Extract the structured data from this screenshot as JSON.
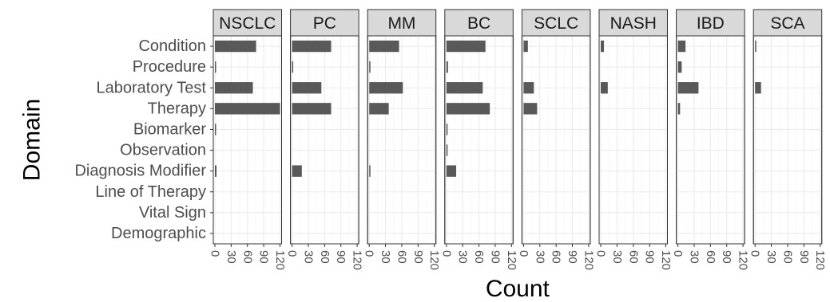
{
  "chart_data": {
    "type": "bar",
    "orientation": "horizontal",
    "faceted": true,
    "xlabel": "Count",
    "ylabel": "Domain",
    "xlim": [
      0,
      120
    ],
    "xticks": [
      "0",
      "30",
      "60",
      "90",
      "120"
    ],
    "categories": [
      "Condition",
      "Procedure",
      "Laboratory Test",
      "Therapy",
      "Biomarker",
      "Observation",
      "Diagnosis Modifier",
      "Line of Therapy",
      "Vital Sign",
      "Demographic"
    ],
    "panels": [
      {
        "name": "NSCLC",
        "values": [
          76,
          1,
          70,
          120,
          1,
          0,
          3,
          0,
          0,
          0
        ]
      },
      {
        "name": "PC",
        "values": [
          72,
          1,
          54,
          72,
          0,
          0,
          18,
          0,
          0,
          0
        ]
      },
      {
        "name": "MM",
        "values": [
          55,
          1,
          62,
          36,
          0,
          0,
          1,
          0,
          0,
          0
        ]
      },
      {
        "name": "BC",
        "values": [
          72,
          3,
          67,
          80,
          1,
          1,
          18,
          0,
          0,
          0
        ]
      },
      {
        "name": "SCLC",
        "values": [
          8,
          0,
          19,
          25,
          0,
          0,
          0,
          0,
          0,
          0
        ]
      },
      {
        "name": "NASH",
        "values": [
          6,
          0,
          13,
          0,
          0,
          0,
          0,
          0,
          0,
          0
        ]
      },
      {
        "name": "IBD",
        "values": [
          14,
          7,
          38,
          4,
          0,
          0,
          0,
          0,
          0,
          0
        ]
      },
      {
        "name": "SCA",
        "values": [
          1,
          0,
          11,
          0,
          0,
          0,
          0,
          0,
          0,
          0
        ]
      }
    ],
    "grid": true,
    "bar_color": "#595959",
    "strip_color": "#d9d9d9",
    "legend": "none"
  }
}
